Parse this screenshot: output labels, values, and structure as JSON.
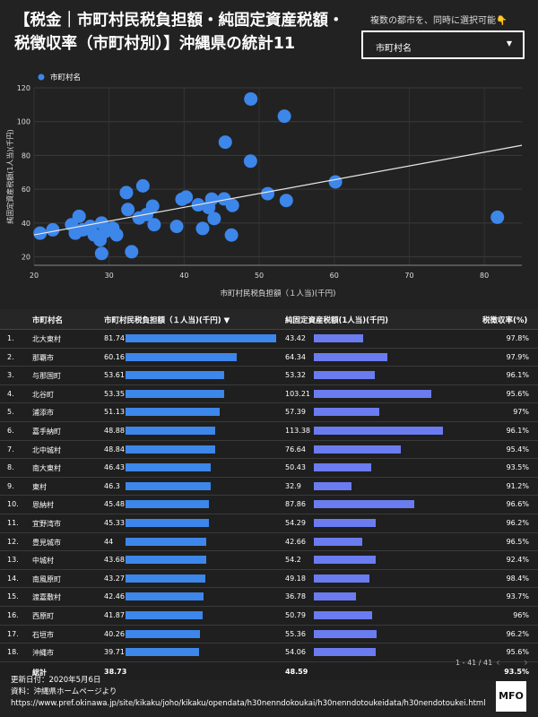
{
  "header": {
    "title": "【税金｜市町村民税負担額・純固定資産税額・税徴収率（市町村別）】沖縄県の統計11",
    "filter_label": "複数の都市を、同時に選択可能👇",
    "filter_value": "市町村名",
    "filter_arrow": "▼"
  },
  "chart_data": {
    "type": "scatter",
    "legend": "市町村名",
    "xlabel": "市町村民税負担額（１人当)(千円)",
    "ylabel": "純固定資産税額(1人当)(千円)",
    "xlim": [
      20,
      85
    ],
    "ylim": [
      15,
      120
    ],
    "xticks": [
      20,
      30,
      40,
      50,
      60,
      70,
      80
    ],
    "yticks": [
      20,
      40,
      60,
      80,
      100,
      120
    ],
    "trendline": {
      "x": [
        20,
        85
      ],
      "y": [
        33,
        86
      ]
    },
    "color": "#3d86ea",
    "points": [
      [
        81.74,
        43.42
      ],
      [
        60.16,
        64.34
      ],
      [
        53.61,
        53.32
      ],
      [
        53.35,
        103.21
      ],
      [
        51.13,
        57.39
      ],
      [
        48.88,
        113.38
      ],
      [
        48.84,
        76.64
      ],
      [
        46.43,
        50.43
      ],
      [
        46.3,
        32.9
      ],
      [
        45.48,
        87.86
      ],
      [
        45.33,
        54.29
      ],
      [
        44,
        42.66
      ],
      [
        43.68,
        54.2
      ],
      [
        43.27,
        49.18
      ],
      [
        42.46,
        36.78
      ],
      [
        41.87,
        50.79
      ],
      [
        40.26,
        55.36
      ],
      [
        39.71,
        54.06
      ],
      [
        39,
        38
      ],
      [
        36,
        39
      ],
      [
        35.8,
        50
      ],
      [
        35,
        45
      ],
      [
        34.5,
        62
      ],
      [
        34,
        43
      ],
      [
        33,
        23
      ],
      [
        32.5,
        48
      ],
      [
        32.3,
        58
      ],
      [
        31,
        33
      ],
      [
        30.5,
        37
      ],
      [
        29.5,
        35
      ],
      [
        29,
        40
      ],
      [
        28.8,
        30
      ],
      [
        29,
        22
      ],
      [
        28,
        33
      ],
      [
        27.5,
        38
      ],
      [
        26.5,
        36
      ],
      [
        26,
        44
      ],
      [
        25.5,
        34
      ],
      [
        25,
        39
      ],
      [
        22.5,
        36
      ],
      [
        20.8,
        34
      ]
    ]
  },
  "table": {
    "headers": [
      "市町村名",
      "市町村民税負担額（１人当)(千円) ▼",
      "純固定資産税額(1人当)(千円)",
      "税徴収率(%)"
    ],
    "rows": [
      {
        "n": "1.",
        "name": "北大東村",
        "a": 81.74,
        "b": 43.42,
        "r": "97.8%"
      },
      {
        "n": "2.",
        "name": "那覇市",
        "a": 60.16,
        "b": 64.34,
        "r": "97.9%"
      },
      {
        "n": "3.",
        "name": "与那国町",
        "a": 53.61,
        "b": 53.32,
        "r": "96.1%"
      },
      {
        "n": "4.",
        "name": "北谷町",
        "a": 53.35,
        "b": 103.21,
        "r": "95.6%"
      },
      {
        "n": "5.",
        "name": "浦添市",
        "a": 51.13,
        "b": 57.39,
        "r": "97%"
      },
      {
        "n": "6.",
        "name": "嘉手納町",
        "a": 48.88,
        "b": 113.38,
        "r": "96.1%"
      },
      {
        "n": "7.",
        "name": "北中城村",
        "a": 48.84,
        "b": 76.64,
        "r": "95.4%"
      },
      {
        "n": "8.",
        "name": "南大東村",
        "a": 46.43,
        "b": 50.43,
        "r": "93.5%"
      },
      {
        "n": "9.",
        "name": "東村",
        "a": 46.3,
        "b": 32.9,
        "r": "91.2%"
      },
      {
        "n": "10.",
        "name": "恩納村",
        "a": 45.48,
        "b": 87.86,
        "r": "96.6%"
      },
      {
        "n": "11.",
        "name": "宜野湾市",
        "a": 45.33,
        "b": 54.29,
        "r": "96.2%"
      },
      {
        "n": "12.",
        "name": "豊見城市",
        "a": 44,
        "b": 42.66,
        "r": "96.5%"
      },
      {
        "n": "13.",
        "name": "中城村",
        "a": 43.68,
        "b": 54.2,
        "r": "92.4%"
      },
      {
        "n": "14.",
        "name": "南風原町",
        "a": 43.27,
        "b": 49.18,
        "r": "98.4%"
      },
      {
        "n": "15.",
        "name": "渡嘉敷村",
        "a": 42.46,
        "b": 36.78,
        "r": "93.7%"
      },
      {
        "n": "16.",
        "name": "西原町",
        "a": 41.87,
        "b": 50.79,
        "r": "96%"
      },
      {
        "n": "17.",
        "name": "石垣市",
        "a": 40.26,
        "b": 55.36,
        "r": "96.2%"
      },
      {
        "n": "18.",
        "name": "沖縄市",
        "a": 39.71,
        "b": 54.06,
        "r": "95.6%"
      }
    ],
    "total": {
      "label": "総計",
      "a": "38.73",
      "b": "48.59",
      "r": "93.5%"
    },
    "max_a": 81.74,
    "max_b": 113.38,
    "pager": "1 - 41 / 41",
    "prev": "‹",
    "next": "›"
  },
  "footer": {
    "updated": "更新日付：2020年5月6日",
    "source": "資料：沖縄県ホームページより",
    "url": "https://www.pref.okinawa.jp/site/kikaku/joho/kikaku/opendata/h30nenndokoukai/h30nenndotoukeidata/h30nendotoukei.html",
    "logo": "MFO"
  }
}
